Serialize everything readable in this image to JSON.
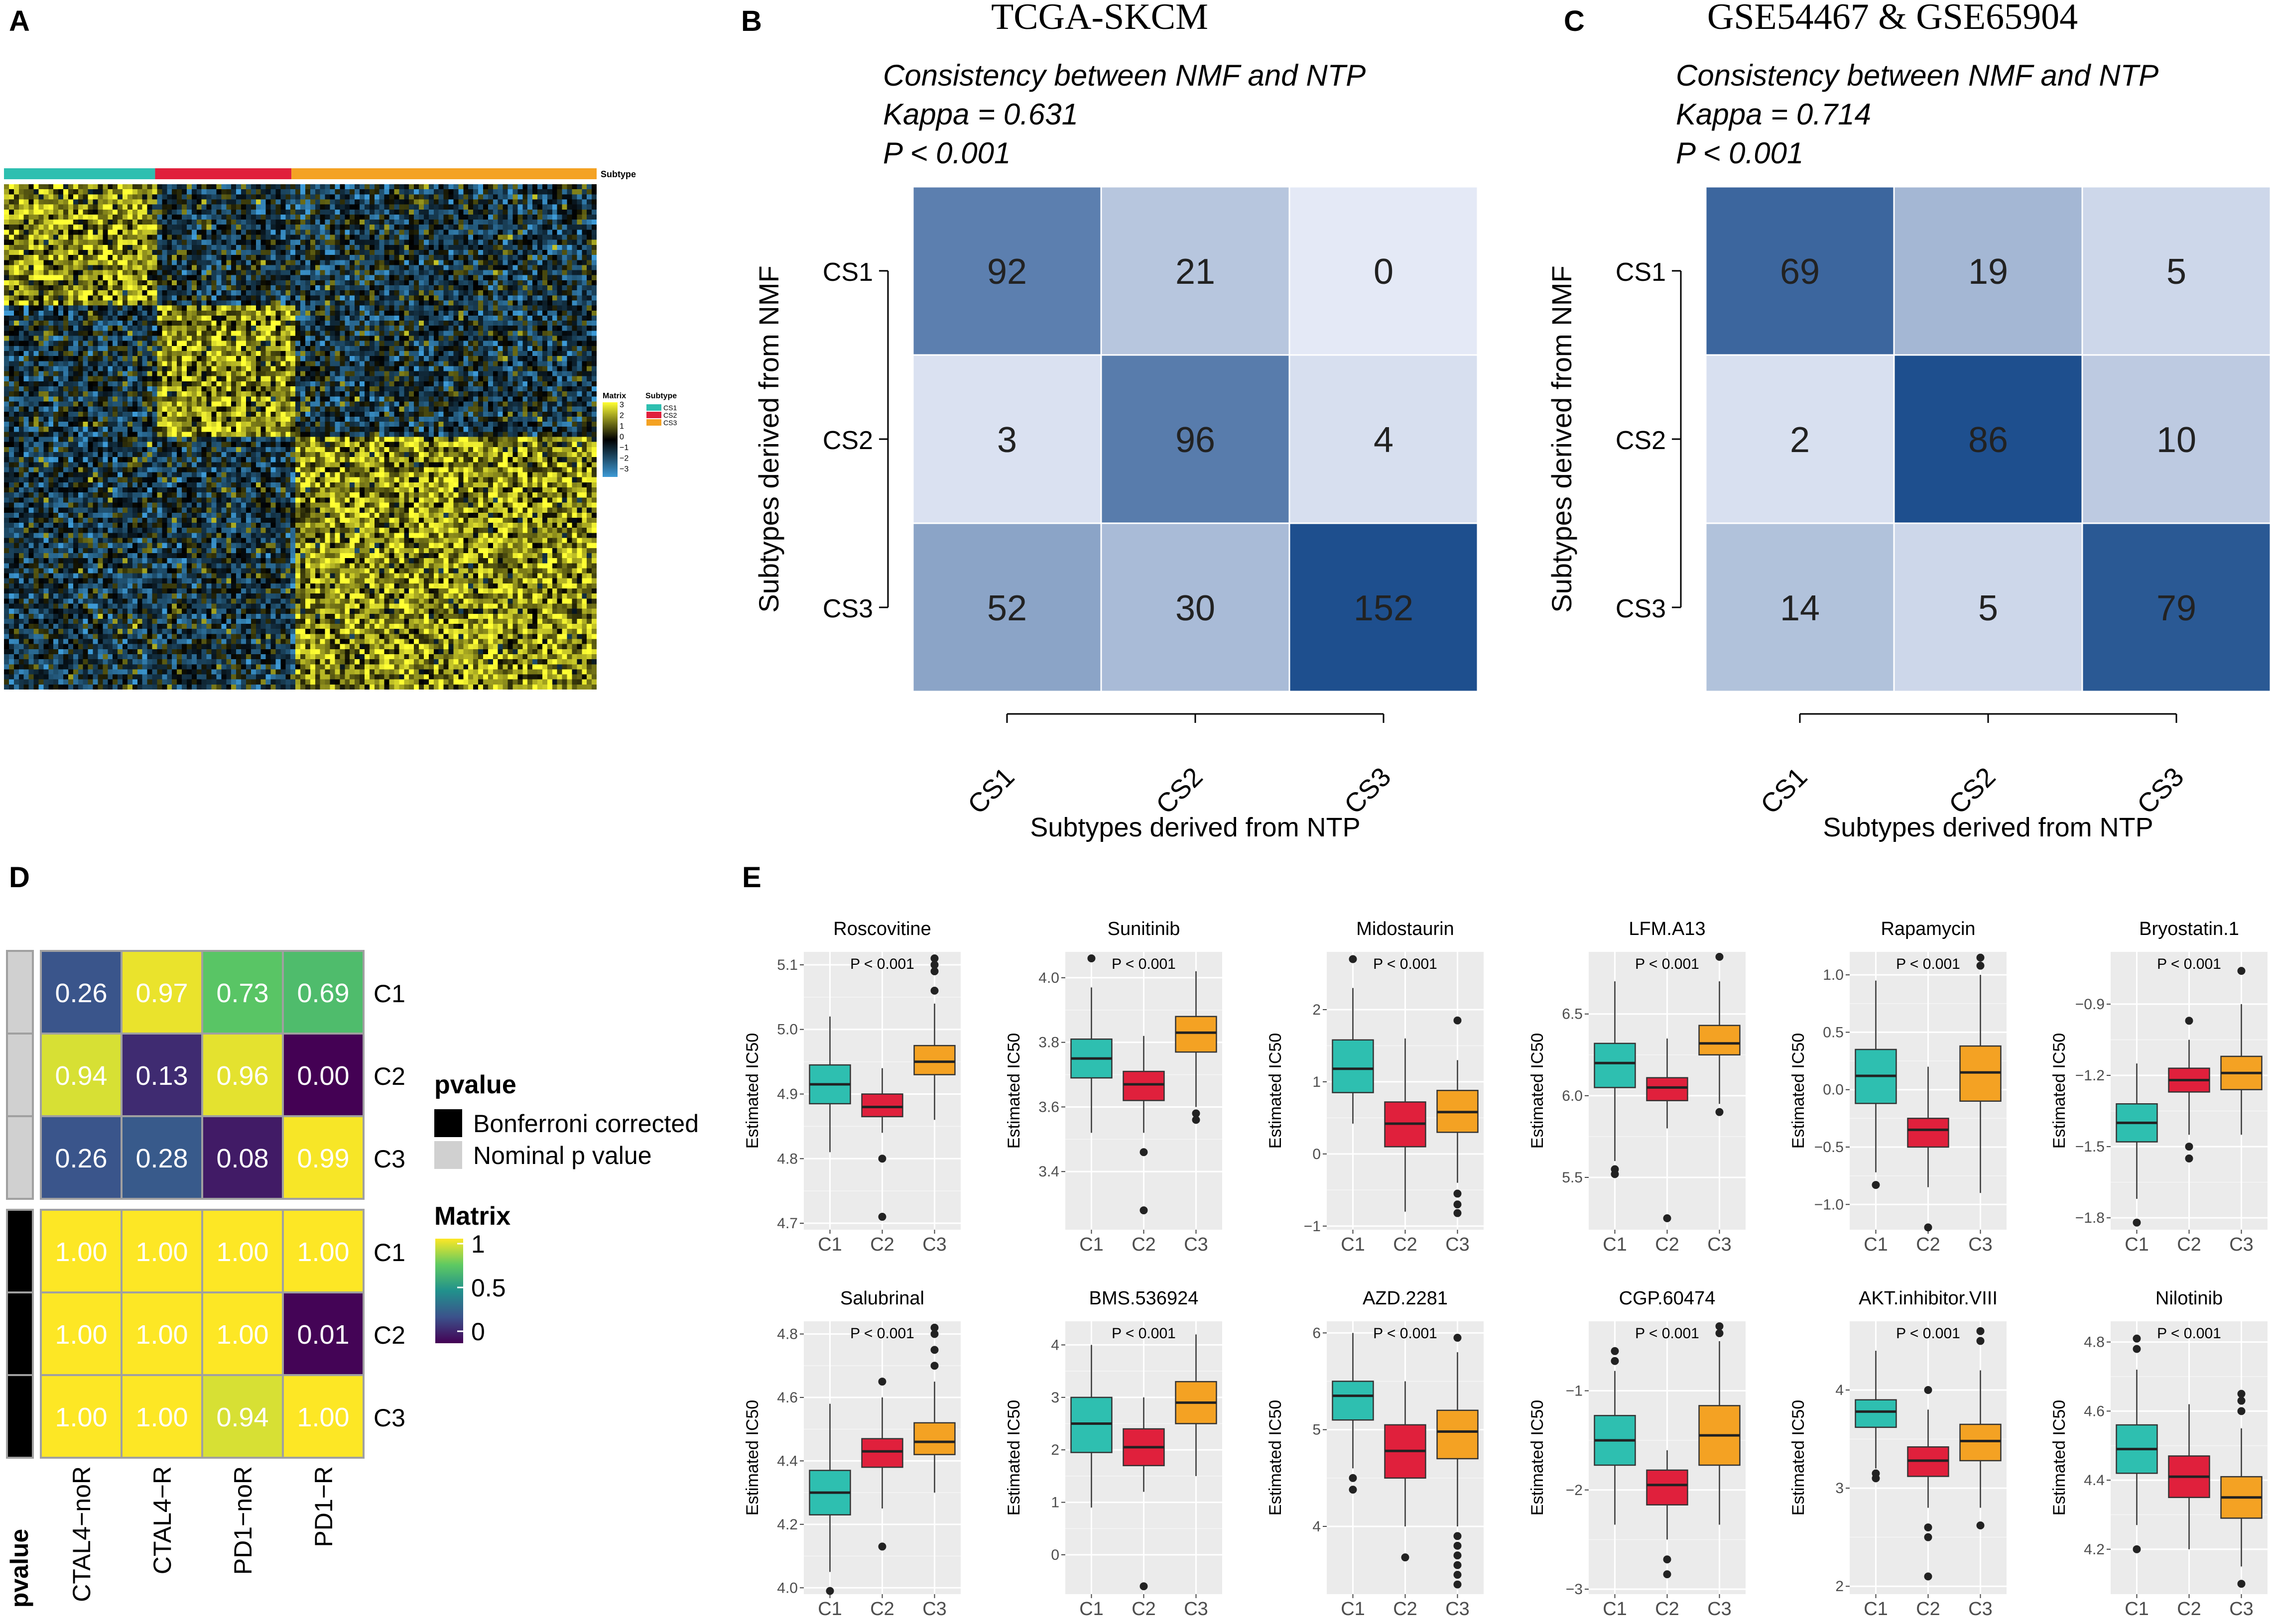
{
  "panels": {
    "a": "A",
    "b": "B",
    "c": "C",
    "d": "D",
    "e": "E"
  },
  "colors": {
    "cs1": "#2ebfb0",
    "cs2": "#e0203c",
    "cs3": "#f4a223",
    "plotbg": "#ebebeb",
    "grid": "#ffffff",
    "heat_hi": "#ffff33",
    "heat_mid": "#000000",
    "heat_lo": "#3d9ad6"
  },
  "chart_data": [
    {
      "id": "heatmap",
      "type": "heatmap",
      "annotation_title": "Subtype",
      "legend_matrix_title": "Matrix",
      "legend_matrix_ticks": [
        "3",
        "2",
        "1",
        "0",
        "−1",
        "−2",
        "−3"
      ],
      "legend_subtype_title": "Subtype",
      "subtypes": [
        "CS1",
        "CS2",
        "CS3"
      ],
      "subtype_column_share": [
        0.255,
        0.23,
        0.515
      ],
      "value_range": [
        -3,
        3
      ]
    },
    {
      "id": "confusion-tcga",
      "type": "heatmap",
      "title": "TCGA-SKCM",
      "subtitle_lines": [
        "Consistency between NMF and NTP",
        "Kappa = 0.631",
        "P < 0.001"
      ],
      "ylabel": "Subtypes derived from NMF",
      "xlabel": "Subtypes derived from NTP",
      "rows": [
        "CS1",
        "CS2",
        "CS3"
      ],
      "cols": [
        "CS1",
        "CS2",
        "CS3"
      ],
      "matrix": [
        [
          92,
          21,
          0
        ],
        [
          3,
          96,
          4
        ],
        [
          52,
          30,
          152
        ]
      ]
    },
    {
      "id": "confusion-geo",
      "type": "heatmap",
      "title": "GSE54467 & GSE65904",
      "subtitle_lines": [
        "Consistency between NMF and NTP",
        "Kappa = 0.714",
        "P < 0.001"
      ],
      "ylabel": "Subtypes derived from NMF",
      "xlabel": "Subtypes derived from NTP",
      "rows": [
        "CS1",
        "CS2",
        "CS3"
      ],
      "cols": [
        "CS1",
        "CS2",
        "CS3"
      ],
      "matrix": [
        [
          69,
          19,
          5
        ],
        [
          2,
          86,
          10
        ],
        [
          14,
          5,
          79
        ]
      ]
    },
    {
      "id": "submap",
      "type": "heatmap",
      "rows": [
        "C1",
        "C2",
        "C3",
        "C1",
        "C2",
        "C3"
      ],
      "cols": [
        "CTAL4−noR",
        "CTAL4−R",
        "PD1−noR",
        "PD1−R"
      ],
      "row_groups": [
        "Nominal p value",
        "Nominal p value",
        "Nominal p value",
        "Bonferroni corrected",
        "Bonferroni corrected",
        "Bonferroni corrected"
      ],
      "values": [
        [
          "0.26",
          "0.97",
          "0.73",
          "0.69"
        ],
        [
          "0.94",
          "0.13",
          "0.96",
          "0.00"
        ],
        [
          "0.26",
          "0.28",
          "0.08",
          "0.99"
        ],
        [
          "1.00",
          "1.00",
          "1.00",
          "1.00"
        ],
        [
          "1.00",
          "1.00",
          "1.00",
          "0.01"
        ],
        [
          "1.00",
          "1.00",
          "0.94",
          "1.00"
        ]
      ],
      "row_annotation_label": "pvalue",
      "legend_pvalue_title": "pvalue",
      "legend_pvalue_items": [
        "Bonferroni corrected",
        "Nominal p value"
      ],
      "legend_matrix_title": "Matrix",
      "legend_matrix_ticks": [
        "1",
        "0.5",
        "0"
      ],
      "value_range": [
        0,
        1
      ]
    },
    {
      "id": "ic50-boxplots",
      "type": "box",
      "ylabel": "Estimated IC50",
      "groups": [
        "C1",
        "C2",
        "C3"
      ],
      "plots": [
        {
          "title": "Roscovitine",
          "p": "P < 0.001",
          "ylim": [
            4.69,
            5.12
          ],
          "ticks": [
            4.7,
            4.8,
            4.9,
            5.0,
            5.1
          ],
          "tick_labels": [
            "4.7",
            "4.8",
            "4.9",
            "5.0",
            "5.1"
          ],
          "boxes": [
            {
              "q1": 4.885,
              "med": 4.915,
              "q3": 4.945,
              "lo": 4.81,
              "hi": 5.02,
              "out": []
            },
            {
              "q1": 4.865,
              "med": 4.88,
              "q3": 4.9,
              "lo": 4.84,
              "hi": 4.94,
              "out": [
                4.8,
                4.71
              ]
            },
            {
              "q1": 4.93,
              "med": 4.95,
              "q3": 4.975,
              "lo": 4.86,
              "hi": 5.04,
              "out": [
                5.06,
                5.09,
                5.1,
                5.11
              ]
            }
          ]
        },
        {
          "title": "Sunitinib",
          "p": "P < 0.001",
          "ylim": [
            3.22,
            4.08
          ],
          "ticks": [
            3.4,
            3.6,
            3.8,
            4.0
          ],
          "tick_labels": [
            "3.4",
            "3.6",
            "3.8",
            "4.0"
          ],
          "boxes": [
            {
              "q1": 3.69,
              "med": 3.75,
              "q3": 3.81,
              "lo": 3.52,
              "hi": 3.97,
              "out": [
                4.06
              ]
            },
            {
              "q1": 3.62,
              "med": 3.67,
              "q3": 3.71,
              "lo": 3.52,
              "hi": 3.82,
              "out": [
                3.46,
                3.28
              ]
            },
            {
              "q1": 3.77,
              "med": 3.83,
              "q3": 3.88,
              "lo": 3.6,
              "hi": 4.02,
              "out": [
                3.58,
                3.56
              ]
            }
          ]
        },
        {
          "title": "Midostaurin",
          "p": "P < 0.001",
          "ylim": [
            -1.05,
            2.8
          ],
          "ticks": [
            -1,
            0,
            1,
            2
          ],
          "tick_labels": [
            "−1",
            "0",
            "1",
            "2"
          ],
          "boxes": [
            {
              "q1": 0.85,
              "med": 1.18,
              "q3": 1.58,
              "lo": 0.42,
              "hi": 2.3,
              "out": [
                2.7
              ]
            },
            {
              "q1": 0.1,
              "med": 0.42,
              "q3": 0.72,
              "lo": -0.8,
              "hi": 1.6,
              "out": []
            },
            {
              "q1": 0.3,
              "med": 0.58,
              "q3": 0.88,
              "lo": -0.4,
              "hi": 1.3,
              "out": [
                1.85,
                -0.55,
                -0.7,
                -0.82
              ]
            }
          ]
        },
        {
          "title": "LFM.A13",
          "p": "P < 0.001",
          "ylim": [
            5.18,
            6.88
          ],
          "ticks": [
            5.5,
            6.0,
            6.5
          ],
          "tick_labels": [
            "5.5",
            "6.0",
            "6.5"
          ],
          "boxes": [
            {
              "q1": 6.05,
              "med": 6.2,
              "q3": 6.32,
              "lo": 5.6,
              "hi": 6.7,
              "out": [
                5.55,
                5.52
              ]
            },
            {
              "q1": 5.97,
              "med": 6.05,
              "q3": 6.11,
              "lo": 5.8,
              "hi": 6.35,
              "out": [
                5.25
              ]
            },
            {
              "q1": 6.25,
              "med": 6.32,
              "q3": 6.43,
              "lo": 5.95,
              "hi": 6.7,
              "out": [
                5.9,
                6.85
              ]
            }
          ]
        },
        {
          "title": "Rapamycin",
          "p": "P < 0.001",
          "ylim": [
            -1.22,
            1.2
          ],
          "ticks": [
            -1.0,
            -0.5,
            0.0,
            0.5,
            1.0
          ],
          "tick_labels": [
            "−1.0",
            "−0.5",
            "0.0",
            "0.5",
            "1.0"
          ],
          "boxes": [
            {
              "q1": -0.12,
              "med": 0.12,
              "q3": 0.35,
              "lo": -0.72,
              "hi": 0.95,
              "out": [
                -0.83
              ]
            },
            {
              "q1": -0.5,
              "med": -0.35,
              "q3": -0.25,
              "lo": -0.85,
              "hi": 0.2,
              "out": [
                -1.2
              ]
            },
            {
              "q1": -0.1,
              "med": 0.15,
              "q3": 0.38,
              "lo": -0.9,
              "hi": 1.0,
              "out": [
                1.08,
                1.15
              ]
            }
          ]
        },
        {
          "title": "Bryostatin.1",
          "p": "P < 0.001",
          "ylim": [
            -1.85,
            -0.68
          ],
          "ticks": [
            -1.8,
            -1.5,
            -1.2,
            -0.9
          ],
          "tick_labels": [
            "−1.8",
            "−1.5",
            "−1.2",
            "−0.9"
          ],
          "boxes": [
            {
              "q1": -1.48,
              "med": -1.4,
              "q3": -1.32,
              "lo": -1.72,
              "hi": -1.15,
              "out": [
                -1.82
              ]
            },
            {
              "q1": -1.27,
              "med": -1.22,
              "q3": -1.17,
              "lo": -1.45,
              "hi": -1.05,
              "out": [
                -0.97,
                -1.5,
                -1.55
              ]
            },
            {
              "q1": -1.26,
              "med": -1.19,
              "q3": -1.12,
              "lo": -1.45,
              "hi": -0.9,
              "out": [
                -0.76
              ]
            }
          ]
        },
        {
          "title": "Salubrinal",
          "p": "P < 0.001",
          "ylim": [
            3.98,
            4.84
          ],
          "ticks": [
            4.0,
            4.2,
            4.4,
            4.6,
            4.8
          ],
          "tick_labels": [
            "4.0",
            "4.2",
            "4.4",
            "4.6",
            "4.8"
          ],
          "boxes": [
            {
              "q1": 4.23,
              "med": 4.3,
              "q3": 4.37,
              "lo": 4.05,
              "hi": 4.58,
              "out": [
                3.99
              ]
            },
            {
              "q1": 4.38,
              "med": 4.43,
              "q3": 4.47,
              "lo": 4.25,
              "hi": 4.6,
              "out": [
                4.13,
                4.65
              ]
            },
            {
              "q1": 4.42,
              "med": 4.46,
              "q3": 4.52,
              "lo": 4.3,
              "hi": 4.65,
              "out": [
                4.7,
                4.75,
                4.8,
                4.82
              ]
            }
          ]
        },
        {
          "title": "BMS.536924",
          "p": "P < 0.001",
          "ylim": [
            -0.75,
            4.45
          ],
          "ticks": [
            0,
            1,
            2,
            3,
            4
          ],
          "tick_labels": [
            "0",
            "1",
            "2",
            "3",
            "4"
          ],
          "boxes": [
            {
              "q1": 1.95,
              "med": 2.5,
              "q3": 3.0,
              "lo": 0.9,
              "hi": 4.0,
              "out": []
            },
            {
              "q1": 1.7,
              "med": 2.05,
              "q3": 2.4,
              "lo": 1.2,
              "hi": 3.0,
              "out": [
                -0.6
              ]
            },
            {
              "q1": 2.5,
              "med": 2.9,
              "q3": 3.3,
              "lo": 1.5,
              "hi": 4.2,
              "out": []
            }
          ]
        },
        {
          "title": "AZD.2281",
          "p": "P < 0.001",
          "ylim": [
            3.3,
            6.12
          ],
          "ticks": [
            4,
            5,
            6
          ],
          "tick_labels": [
            "4",
            "5",
            "6"
          ],
          "boxes": [
            {
              "q1": 5.1,
              "med": 5.35,
              "q3": 5.5,
              "lo": 4.6,
              "hi": 6.0,
              "out": [
                4.5,
                4.38
              ]
            },
            {
              "q1": 4.5,
              "med": 4.78,
              "q3": 5.05,
              "lo": 4.0,
              "hi": 5.5,
              "out": [
                3.68
              ]
            },
            {
              "q1": 4.7,
              "med": 4.98,
              "q3": 5.2,
              "lo": 4.0,
              "hi": 5.8,
              "out": [
                5.95,
                3.9,
                3.8,
                3.7,
                3.6,
                3.5,
                3.4
              ]
            }
          ]
        },
        {
          "title": "CGP.60474",
          "p": "P < 0.001",
          "ylim": [
            -3.05,
            -0.3
          ],
          "ticks": [
            -3,
            -2,
            -1
          ],
          "tick_labels": [
            "−3",
            "−2",
            "−1"
          ],
          "boxes": [
            {
              "q1": -1.75,
              "med": -1.5,
              "q3": -1.25,
              "lo": -2.35,
              "hi": -0.8,
              "out": [
                -0.6,
                -0.7
              ]
            },
            {
              "q1": -2.15,
              "med": -1.95,
              "q3": -1.8,
              "lo": -2.5,
              "hi": -1.6,
              "out": [
                -2.7,
                -2.85
              ]
            },
            {
              "q1": -1.75,
              "med": -1.45,
              "q3": -1.15,
              "lo": -2.35,
              "hi": -0.5,
              "out": [
                -0.35,
                -0.42
              ]
            }
          ]
        },
        {
          "title": "AKT.inhibitor.VIII",
          "p": "P < 0.001",
          "ylim": [
            1.92,
            4.7
          ],
          "ticks": [
            2,
            3,
            4
          ],
          "tick_labels": [
            "2",
            "3",
            "4"
          ],
          "boxes": [
            {
              "q1": 3.62,
              "med": 3.78,
              "q3": 3.9,
              "lo": 3.2,
              "hi": 4.4,
              "out": [
                3.1,
                3.15
              ]
            },
            {
              "q1": 3.12,
              "med": 3.28,
              "q3": 3.42,
              "lo": 2.8,
              "hi": 3.8,
              "out": [
                4.0,
                2.6,
                2.5,
                2.1
              ]
            },
            {
              "q1": 3.28,
              "med": 3.48,
              "q3": 3.65,
              "lo": 2.8,
              "hi": 4.2,
              "out": [
                2.62,
                4.6,
                4.5
              ]
            }
          ]
        },
        {
          "title": "Nilotinib",
          "p": "P < 0.001",
          "ylim": [
            4.07,
            4.86
          ],
          "ticks": [
            4.2,
            4.4,
            4.6,
            4.8
          ],
          "tick_labels": [
            "4.2",
            "4.4",
            "4.6",
            "4.8"
          ],
          "boxes": [
            {
              "q1": 4.42,
              "med": 4.49,
              "q3": 4.56,
              "lo": 4.27,
              "hi": 4.72,
              "out": [
                4.2,
                4.78,
                4.81
              ]
            },
            {
              "q1": 4.35,
              "med": 4.41,
              "q3": 4.47,
              "lo": 4.2,
              "hi": 4.62,
              "out": []
            },
            {
              "q1": 4.29,
              "med": 4.35,
              "q3": 4.41,
              "lo": 4.15,
              "hi": 4.55,
              "out": [
                4.6,
                4.63,
                4.65,
                4.1
              ]
            }
          ]
        }
      ]
    }
  ]
}
